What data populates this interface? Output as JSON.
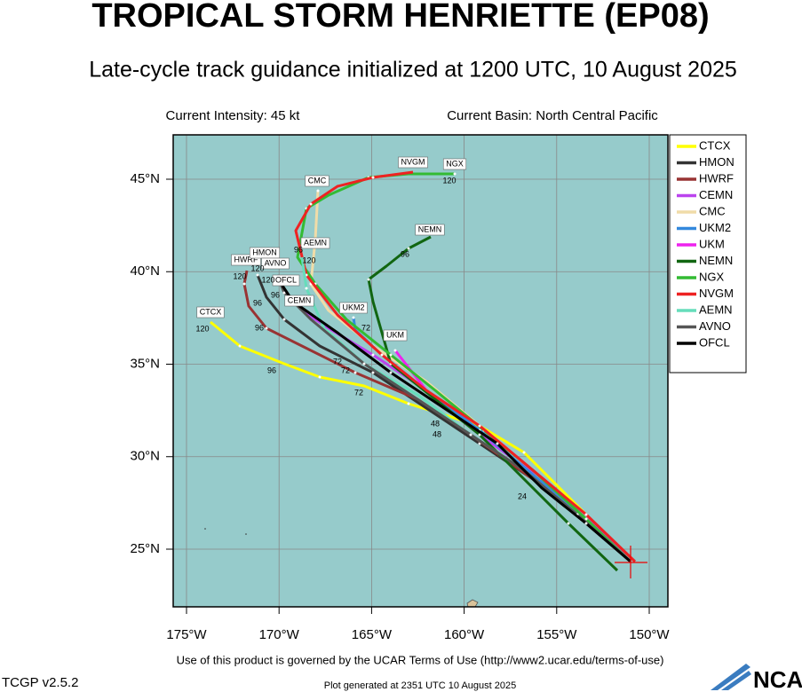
{
  "header": {
    "title": "TROPICAL STORM HENRIETTE (EP08)",
    "subtitle": "Late-cycle track guidance initialized at 1200 UTC, 10 August 2025",
    "intensity": "Current Intensity: 45 kt",
    "basin": "Current Basin: North Central Pacific"
  },
  "map": {
    "lon_ticks": [
      {
        "value": -175,
        "label": "175°W"
      },
      {
        "value": -170,
        "label": "170°W"
      },
      {
        "value": -165,
        "label": "165°W"
      },
      {
        "value": -160,
        "label": "160°W"
      },
      {
        "value": -155,
        "label": "155°W"
      },
      {
        "value": -150,
        "label": "150°W"
      }
    ],
    "lat_ticks": [
      {
        "value": 25,
        "label": "25°N"
      },
      {
        "value": 30,
        "label": "30°N"
      },
      {
        "value": 35,
        "label": "35°N"
      },
      {
        "value": 40,
        "label": "40°N"
      },
      {
        "value": 45,
        "label": "45°N"
      }
    ],
    "legend": [
      {
        "name": "CTCX",
        "color": "#ffff00"
      },
      {
        "name": "HMON",
        "color": "#333333"
      },
      {
        "name": "HWRF",
        "color": "#993333"
      },
      {
        "name": "CEMN",
        "color": "#bb44ee"
      },
      {
        "name": "CMC",
        "color": "#f0dca8"
      },
      {
        "name": "UKM2",
        "color": "#3388dd"
      },
      {
        "name": "UKM",
        "color": "#ee22ee"
      },
      {
        "name": "NEMN",
        "color": "#116611"
      },
      {
        "name": "NGX",
        "color": "#33bb33"
      },
      {
        "name": "NVGM",
        "color": "#ee2222"
      },
      {
        "name": "AEMN",
        "color": "#66ddbb"
      },
      {
        "name": "AVNO",
        "color": "#555555"
      },
      {
        "name": "OFCL",
        "color": "#000000"
      }
    ],
    "model_labels": [
      "CTCX",
      "HWRF",
      "HMON",
      "AVNO",
      "OFCL",
      "CMC",
      "AEMN",
      "CEMN",
      "UKM2",
      "UKM",
      "NEMN",
      "NVGM",
      "NGX"
    ],
    "hour_labels": [
      "120",
      "120",
      "120",
      "120",
      "96",
      "120",
      "96",
      "72",
      "96",
      "120",
      "96",
      "96",
      "96",
      "72",
      "72",
      "72",
      "48",
      "48",
      "24"
    ]
  },
  "footer": {
    "terms": "Use of this product is governed by the UCAR Terms of Use (http://www2.ucar.edu/terms-of-use)",
    "version": "TCGP v2.5.2",
    "generated": "Plot generated at 2351 UTC   10 August 2025",
    "logo": "NCAR"
  }
}
